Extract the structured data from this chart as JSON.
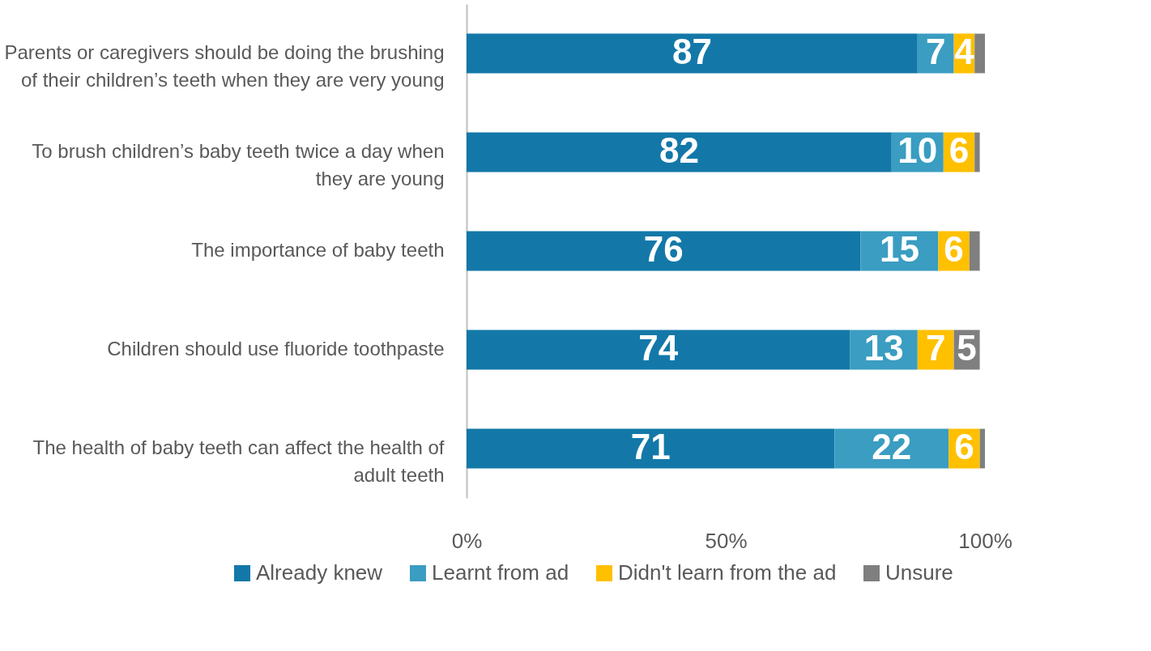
{
  "chart_data": {
    "type": "bar",
    "orientation": "horizontal",
    "stacked": true,
    "categories": [
      "Parents or caregivers should be doing the brushing of their children’s teeth when they are very young",
      "To brush children’s baby teeth twice a day when they are young",
      "The importance of baby teeth",
      "Children should use fluoride toothpaste",
      "The health of baby teeth can affect the health of adult teeth"
    ],
    "series": [
      {
        "name": "Already knew",
        "color": "#1378a8",
        "values": [
          87,
          82,
          76,
          74,
          71
        ],
        "value_labels": [
          "87",
          "82",
          "76",
          "74",
          "71"
        ]
      },
      {
        "name": "Learnt from ad",
        "color": "#3a9dc1",
        "values": [
          7,
          10,
          15,
          13,
          22
        ],
        "value_labels": [
          "7",
          "10",
          "15",
          "13",
          "22"
        ]
      },
      {
        "name": "Didn't learn from the ad",
        "color": "#ffc000",
        "values": [
          4,
          6,
          6,
          7,
          6
        ],
        "value_labels": [
          "4",
          "6",
          "6",
          "7",
          "6"
        ]
      },
      {
        "name": "Unsure",
        "color": "#7f7f7f",
        "values": [
          2,
          1,
          2,
          5,
          1
        ],
        "value_labels": [
          null,
          null,
          null,
          "5",
          null
        ]
      }
    ],
    "xlim": [
      0,
      100
    ],
    "xticks": [
      {
        "value": 0,
        "label": "0%"
      },
      {
        "value": 50,
        "label": "50%"
      },
      {
        "value": 100,
        "label": "100%"
      }
    ],
    "grid": false,
    "legend": "bottom"
  }
}
